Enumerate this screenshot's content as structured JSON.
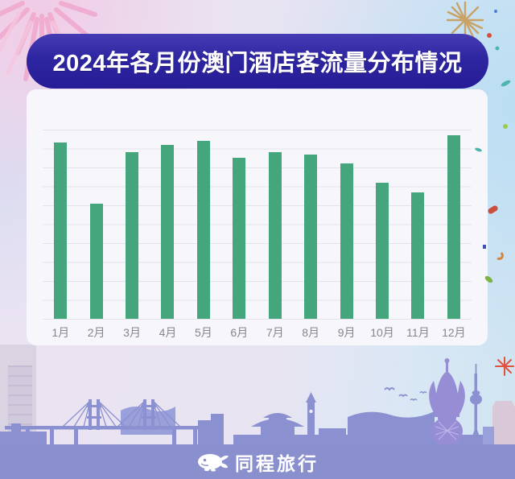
{
  "page": {
    "title_banner": "2024年各月份澳门酒店客流量分布情况"
  },
  "chart_data": {
    "type": "bar",
    "title": "2024年各月份澳门酒店客流量分布情况",
    "categories": [
      "1月",
      "2月",
      "3月",
      "4月",
      "5月",
      "6月",
      "7月",
      "8月",
      "9月",
      "10月",
      "11月",
      "12月"
    ],
    "values": [
      93,
      61,
      88,
      92,
      94,
      85,
      88,
      87,
      82,
      72,
      67,
      97
    ],
    "xlabel": "",
    "ylabel": "",
    "ylim": [
      0,
      100
    ],
    "grid": true,
    "legend_position": "none",
    "bar_color": "#45a57d"
  },
  "footer": {
    "brand": "同程旅行",
    "mascot_icon": "tongcheng-whale-mascot"
  },
  "colors": {
    "banner_bg": "#2e25a1",
    "banner_text": "#ffffff",
    "bar": "#45a57d",
    "card_bg": "#f7f7fb",
    "gridline": "#e4e3ec",
    "axis_label": "#85858e",
    "footer_bg": "#8a90cd",
    "skyline": "#8b90d0"
  },
  "decorations": {
    "fireworks_left_icon": "pink-firework-burst",
    "fireworks_right_icon": "gold-firework-burst",
    "skyline_icon": "macau-skyline-silhouette",
    "confetti": [
      "red-bean",
      "blue-square",
      "orange-crescent",
      "green-leaf",
      "teal-leaf",
      "green-dot",
      "red-mini-firework"
    ]
  }
}
